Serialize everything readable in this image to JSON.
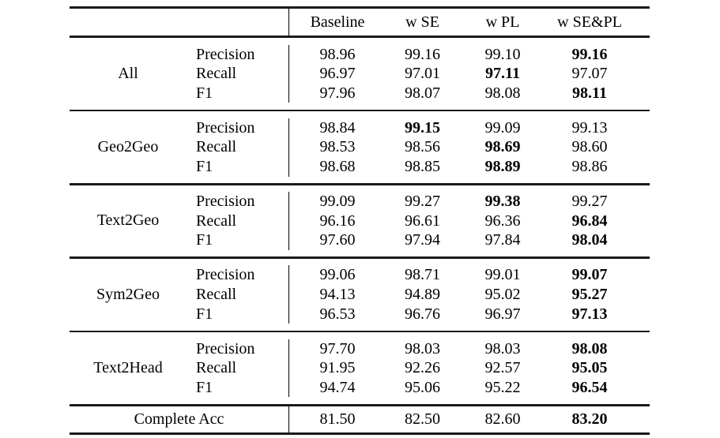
{
  "table": {
    "header": {
      "columns": [
        "Baseline",
        "w SE",
        "w PL",
        "w SE&PL"
      ]
    },
    "groups": [
      {
        "name": "All",
        "rows": [
          {
            "metric": "Precision",
            "values": [
              "98.96",
              "99.16",
              "99.10",
              "99.16"
            ],
            "bold": [
              false,
              false,
              false,
              true
            ]
          },
          {
            "metric": "Recall",
            "values": [
              "96.97",
              "97.01",
              "97.11",
              "97.07"
            ],
            "bold": [
              false,
              false,
              true,
              false
            ]
          },
          {
            "metric": "F1",
            "values": [
              "97.96",
              "98.07",
              "98.08",
              "98.11"
            ],
            "bold": [
              false,
              false,
              false,
              true
            ]
          }
        ]
      },
      {
        "name": "Geo2Geo",
        "rows": [
          {
            "metric": "Precision",
            "values": [
              "98.84",
              "99.15",
              "99.09",
              "99.13"
            ],
            "bold": [
              false,
              true,
              false,
              false
            ]
          },
          {
            "metric": "Recall",
            "values": [
              "98.53",
              "98.56",
              "98.69",
              "98.60"
            ],
            "bold": [
              false,
              false,
              true,
              false
            ]
          },
          {
            "metric": "F1",
            "values": [
              "98.68",
              "98.85",
              "98.89",
              "98.86"
            ],
            "bold": [
              false,
              false,
              true,
              false
            ]
          }
        ]
      },
      {
        "name": "Text2Geo",
        "rows": [
          {
            "metric": "Precision",
            "values": [
              "99.09",
              "99.27",
              "99.38",
              "99.27"
            ],
            "bold": [
              false,
              false,
              true,
              false
            ]
          },
          {
            "metric": "Recall",
            "values": [
              "96.16",
              "96.61",
              "96.36",
              "96.84"
            ],
            "bold": [
              false,
              false,
              false,
              true
            ]
          },
          {
            "metric": "F1",
            "values": [
              "97.60",
              "97.94",
              "97.84",
              "98.04"
            ],
            "bold": [
              false,
              false,
              false,
              true
            ]
          }
        ]
      },
      {
        "name": "Sym2Geo",
        "rows": [
          {
            "metric": "Precision",
            "values": [
              "99.06",
              "98.71",
              "99.01",
              "99.07"
            ],
            "bold": [
              false,
              false,
              false,
              true
            ]
          },
          {
            "metric": "Recall",
            "values": [
              "94.13",
              "94.89",
              "95.02",
              "95.27"
            ],
            "bold": [
              false,
              false,
              false,
              true
            ]
          },
          {
            "metric": "F1",
            "values": [
              "96.53",
              "96.76",
              "96.97",
              "97.13"
            ],
            "bold": [
              false,
              false,
              false,
              true
            ]
          }
        ]
      },
      {
        "name": "Text2Head",
        "rows": [
          {
            "metric": "Precision",
            "values": [
              "97.70",
              "98.03",
              "98.03",
              "98.08"
            ],
            "bold": [
              false,
              false,
              false,
              true
            ]
          },
          {
            "metric": "Recall",
            "values": [
              "91.95",
              "92.26",
              "92.57",
              "95.05"
            ],
            "bold": [
              false,
              false,
              false,
              true
            ]
          },
          {
            "metric": "F1",
            "values": [
              "94.74",
              "95.06",
              "95.22",
              "96.54"
            ],
            "bold": [
              false,
              false,
              false,
              true
            ]
          }
        ]
      }
    ],
    "footer": {
      "label": "Complete Acc",
      "values": [
        "81.50",
        "82.50",
        "82.60",
        "83.20"
      ],
      "bold": [
        false,
        false,
        false,
        true
      ]
    }
  },
  "colors": {
    "background": "#ffffff",
    "text": "#000000",
    "rule": "#1a1a1a"
  }
}
